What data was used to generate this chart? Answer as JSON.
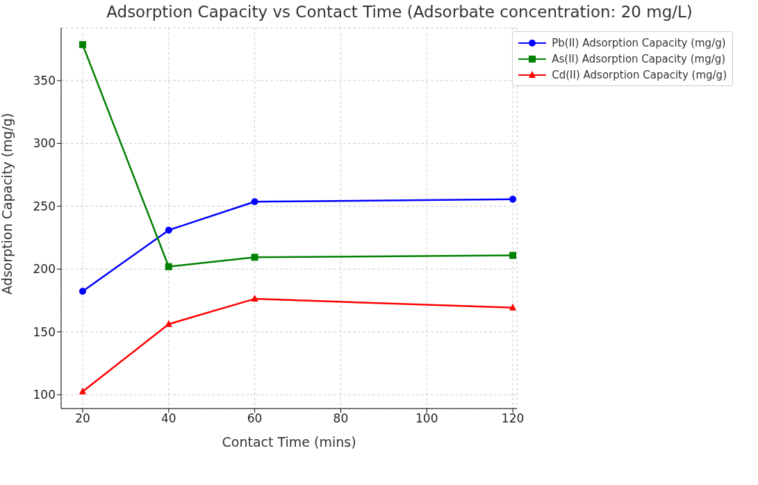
{
  "chart_data": {
    "type": "line",
    "title": "Adsorption Capacity vs Contact Time (Adsorbate concentration: 20 mg/L)",
    "xlabel": "Contact Time (mins)",
    "ylabel": "Adsorption Capacity (mg/g)",
    "x": [
      20,
      40,
      60,
      120
    ],
    "series": [
      {
        "name": "Pb(II) Adsorption Capacity (mg/g)",
        "color": "#0000ff",
        "marker": "circle",
        "values": [
          182.3,
          231,
          253.6,
          255.6
        ]
      },
      {
        "name": "As(II) Adsorption Capacity (mg/g)",
        "color": "#008000",
        "marker": "square",
        "values": [
          378.6,
          201.9,
          209.4,
          210.9
        ]
      },
      {
        "name": "Cd(II) Adsorption Capacity (mg/g)",
        "color": "#ff0000",
        "marker": "triangle",
        "values": [
          102.5,
          156.2,
          176.3,
          169.3
        ]
      }
    ],
    "xlim": [
      15,
      121
    ],
    "xticks": [
      20,
      40,
      60,
      80,
      100,
      120
    ],
    "ylim": [
      89,
      392
    ],
    "yticks": [
      100,
      150,
      200,
      250,
      300,
      350
    ],
    "grid": true,
    "legend": "top right",
    "line_style": "solid"
  }
}
